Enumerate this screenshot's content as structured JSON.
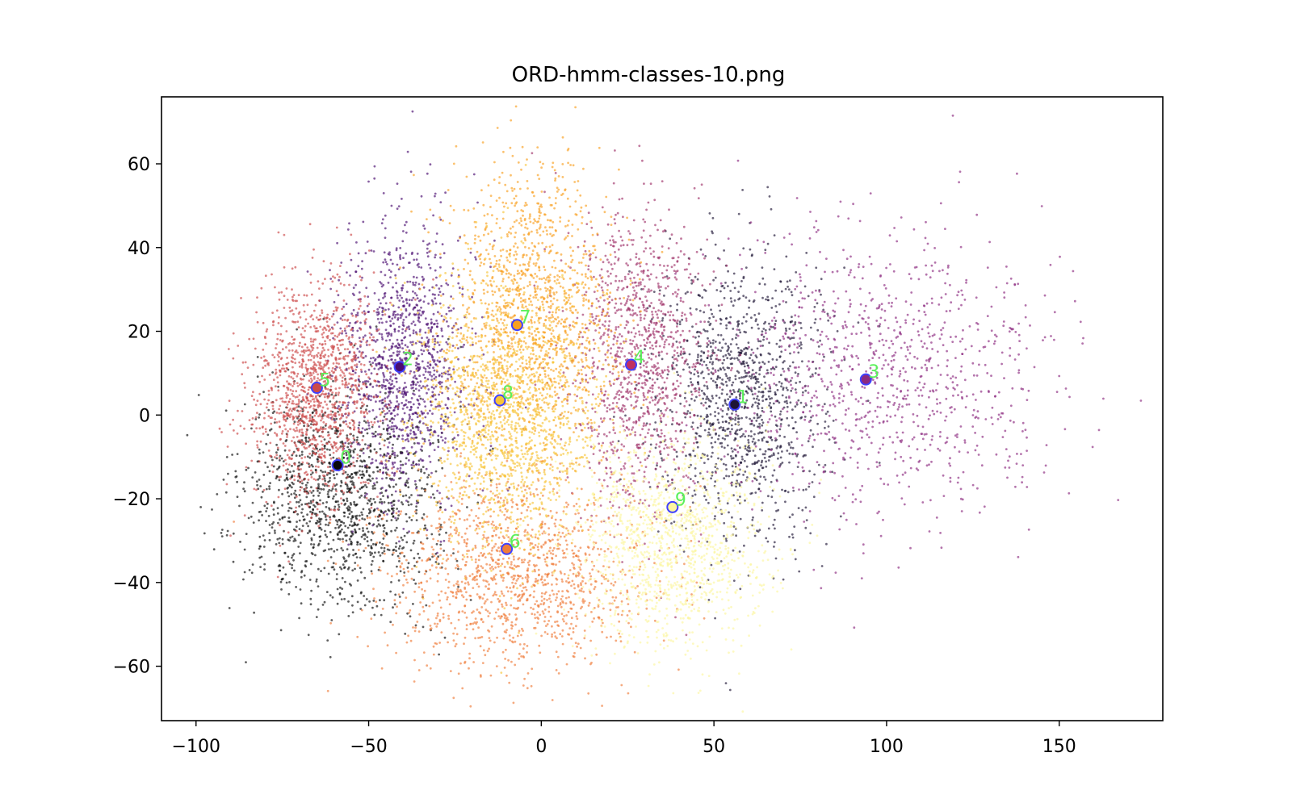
{
  "chart_data": {
    "type": "scatter",
    "title": "ORD-hmm-classes-10.png",
    "xlabel": "",
    "ylabel": "",
    "xlim": [
      -110,
      180
    ],
    "ylim": [
      -73,
      76
    ],
    "x_ticks": [
      -100,
      -50,
      0,
      50,
      100,
      150
    ],
    "x_tick_labels": [
      "−100",
      "−50",
      "0",
      "50",
      "100",
      "150"
    ],
    "y_ticks": [
      -60,
      -40,
      -20,
      0,
      20,
      40,
      60
    ],
    "y_tick_labels": [
      "−60",
      "−40",
      "−20",
      "0",
      "20",
      "40",
      "60"
    ],
    "grid": false,
    "clusters": [
      {
        "label": "0",
        "color": "#0a0a0a",
        "center": [
          -58,
          -20
        ],
        "spread": [
          14,
          13
        ],
        "count": 1300
      },
      {
        "label": "1",
        "color": "#1e1535",
        "center": [
          58,
          4
        ],
        "spread": [
          12,
          17
        ],
        "count": 1200
      },
      {
        "label": "2",
        "color": "#4a0d70",
        "center": [
          -40,
          12
        ],
        "spread": [
          9,
          16
        ],
        "count": 1200
      },
      {
        "label": "3",
        "color": "#8c2a80",
        "center": [
          100,
          10
        ],
        "spread": [
          24,
          17
        ],
        "count": 1000
      },
      {
        "label": "4",
        "color": "#a0336a",
        "center": [
          28,
          14
        ],
        "spread": [
          10,
          18
        ],
        "count": 1100
      },
      {
        "label": "5",
        "color": "#cc4a4a",
        "center": [
          -66,
          5
        ],
        "spread": [
          9,
          13
        ],
        "count": 1300
      },
      {
        "label": "6",
        "color": "#f07d3a",
        "center": [
          -8,
          -38
        ],
        "spread": [
          19,
          11
        ],
        "count": 1300
      },
      {
        "label": "7",
        "color": "#f9a020",
        "center": [
          -3,
          24
        ],
        "spread": [
          12,
          17
        ],
        "count": 1400
      },
      {
        "label": "8",
        "color": "#f8c43a",
        "center": [
          -10,
          0
        ],
        "spread": [
          13,
          16
        ],
        "count": 1500
      },
      {
        "label": "9",
        "color": "#fcf6a0",
        "center": [
          38,
          -30
        ],
        "spread": [
          14,
          13
        ],
        "count": 1300
      }
    ],
    "centroids": [
      {
        "label": "0",
        "x": -59,
        "y": -12,
        "fill": "#0a0a0a"
      },
      {
        "label": "1",
        "x": 56,
        "y": 2.5,
        "fill": "#1e1535"
      },
      {
        "label": "2",
        "x": -41,
        "y": 11.5,
        "fill": "#4a0d70"
      },
      {
        "label": "3",
        "x": 94,
        "y": 8.5,
        "fill": "#8c2a80"
      },
      {
        "label": "4",
        "x": 26,
        "y": 12,
        "fill": "#c03060"
      },
      {
        "label": "5",
        "x": -65,
        "y": 6.5,
        "fill": "#cc4a4a"
      },
      {
        "label": "6",
        "x": -10,
        "y": -32,
        "fill": "#f07d3a"
      },
      {
        "label": "7",
        "x": -7,
        "y": 21.5,
        "fill": "#f9a020"
      },
      {
        "label": "8",
        "x": -12,
        "y": 3.5,
        "fill": "#f8c43a"
      },
      {
        "label": "9",
        "x": 38,
        "y": -22,
        "fill": "#fcf6a0"
      }
    ],
    "centroid_edge_color": "#4040ff",
    "centroid_label_color": "#5cf05c"
  }
}
